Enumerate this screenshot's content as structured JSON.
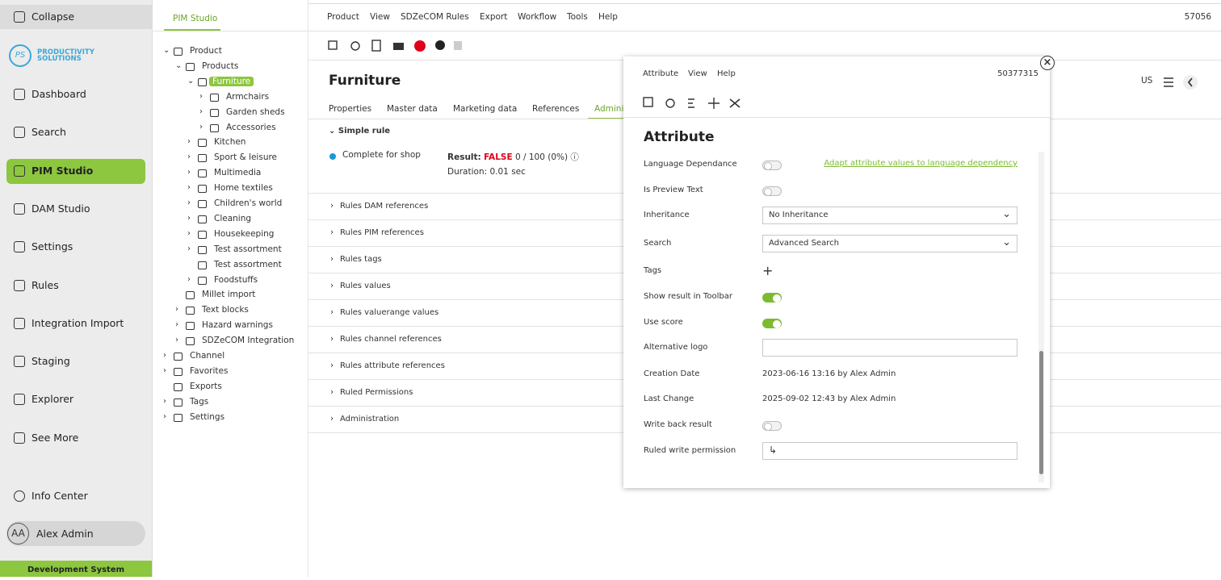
{
  "sidebar": {
    "collapse": "Collapse",
    "logo_mark": "PS",
    "logo_lines": [
      "PRODUCTIVITY",
      "SOLUTIONS"
    ],
    "nav": [
      "Dashboard",
      "Search",
      "PIM Studio",
      "DAM Studio",
      "Settings",
      "Rules",
      "Integration Import",
      "Staging",
      "Explorer",
      "See More"
    ],
    "info": "Info Center",
    "user_initials": "AA",
    "user": "Alex Admin",
    "footer": "Development System"
  },
  "tree": {
    "tab": "PIM Studio",
    "items": [
      {
        "label": "Product",
        "depth": 0,
        "expandable": true,
        "open": true
      },
      {
        "label": "Products",
        "depth": 1,
        "expandable": true,
        "open": true
      },
      {
        "label": "Furniture",
        "depth": 2,
        "expandable": true,
        "open": true,
        "selected": true
      },
      {
        "label": "Armchairs",
        "depth": 3,
        "expandable": true,
        "open": false
      },
      {
        "label": "Garden sheds",
        "depth": 3,
        "expandable": true,
        "open": false
      },
      {
        "label": "Accessories",
        "depth": 3,
        "expandable": true,
        "open": false
      },
      {
        "label": "Kitchen",
        "depth": 2,
        "expandable": true,
        "open": false
      },
      {
        "label": "Sport & leisure",
        "depth": 2,
        "expandable": true,
        "open": false
      },
      {
        "label": "Multimedia",
        "depth": 2,
        "expandable": true,
        "open": false
      },
      {
        "label": "Home textiles",
        "depth": 2,
        "expandable": true,
        "open": false
      },
      {
        "label": "Children's world",
        "depth": 2,
        "expandable": true,
        "open": false
      },
      {
        "label": "Cleaning",
        "depth": 2,
        "expandable": true,
        "open": false
      },
      {
        "label": "Housekeeping",
        "depth": 2,
        "expandable": true,
        "open": false
      },
      {
        "label": "Test assortment",
        "depth": 2,
        "expandable": true,
        "open": false
      },
      {
        "label": "Test assortment",
        "depth": 2,
        "expandable": false,
        "open": false
      },
      {
        "label": "Foodstuffs",
        "depth": 2,
        "expandable": true,
        "open": false
      },
      {
        "label": "Millet import",
        "depth": 1,
        "expandable": false,
        "open": false
      },
      {
        "label": "Text blocks",
        "depth": 1,
        "expandable": true,
        "open": false
      },
      {
        "label": "Hazard warnings",
        "depth": 1,
        "expandable": true,
        "open": false
      },
      {
        "label": "SDZeCOM Integration",
        "depth": 1,
        "expandable": true,
        "open": false
      },
      {
        "label": "Channel",
        "depth": 0,
        "expandable": true,
        "open": false
      },
      {
        "label": "Favorites",
        "depth": 0,
        "expandable": true,
        "open": false
      },
      {
        "label": "Exports",
        "depth": 0,
        "expandable": false,
        "open": false
      },
      {
        "label": "Tags",
        "depth": 0,
        "expandable": true,
        "open": false
      },
      {
        "label": "Settings",
        "depth": 0,
        "expandable": true,
        "open": false
      }
    ]
  },
  "menu": [
    "Product",
    "View",
    "SDZeCOM Rules",
    "Export",
    "Workflow",
    "Tools",
    "Help"
  ],
  "record_id": "57056",
  "locale": "US",
  "page": {
    "title": "Furniture",
    "tabs": [
      "Properties",
      "Master data",
      "Marketing data",
      "References",
      "Administration"
    ],
    "simple_rule": {
      "heading": "Simple rule",
      "item": "Complete for shop",
      "result_label": "Result:",
      "result_value": "FALSE",
      "result_score": "0 / 100 (0%)",
      "duration": "Duration: 0.01 sec"
    },
    "sections": [
      "Rules DAM references",
      "Rules PIM references",
      "Rules tags",
      "Rules values",
      "Rules valuerange values",
      "Rules channel references",
      "Rules attribute references",
      "Ruled Permissions",
      "Administration"
    ]
  },
  "dialog": {
    "menu": [
      "Attribute",
      "View",
      "Help"
    ],
    "id": "50377315",
    "title": "Attribute",
    "link": "Adapt attribute values to language dependency",
    "fields": [
      {
        "label": "Language Dependance",
        "kind": "toggle",
        "on": false
      },
      {
        "label": "Is Preview Text",
        "kind": "toggle",
        "on": false
      },
      {
        "label": "Inheritance",
        "kind": "select",
        "value": "No Inheritance"
      },
      {
        "label": "Search",
        "kind": "select",
        "value": "Advanced Search"
      },
      {
        "label": "Tags",
        "kind": "plus"
      },
      {
        "label": "Show result in Toolbar",
        "kind": "toggle",
        "on": true
      },
      {
        "label": "Use score",
        "kind": "toggle",
        "on": true
      },
      {
        "label": "Alternative logo",
        "kind": "input"
      },
      {
        "label": "Creation Date",
        "kind": "text",
        "value": "2023-06-16 13:16 by Alex Admin"
      },
      {
        "label": "Last Change",
        "kind": "text",
        "value": "2025-09-02 12:43 by Alex Admin"
      },
      {
        "label": "Write back result",
        "kind": "toggle",
        "on": false
      },
      {
        "label": "Ruled write permission",
        "kind": "link-input"
      }
    ]
  }
}
